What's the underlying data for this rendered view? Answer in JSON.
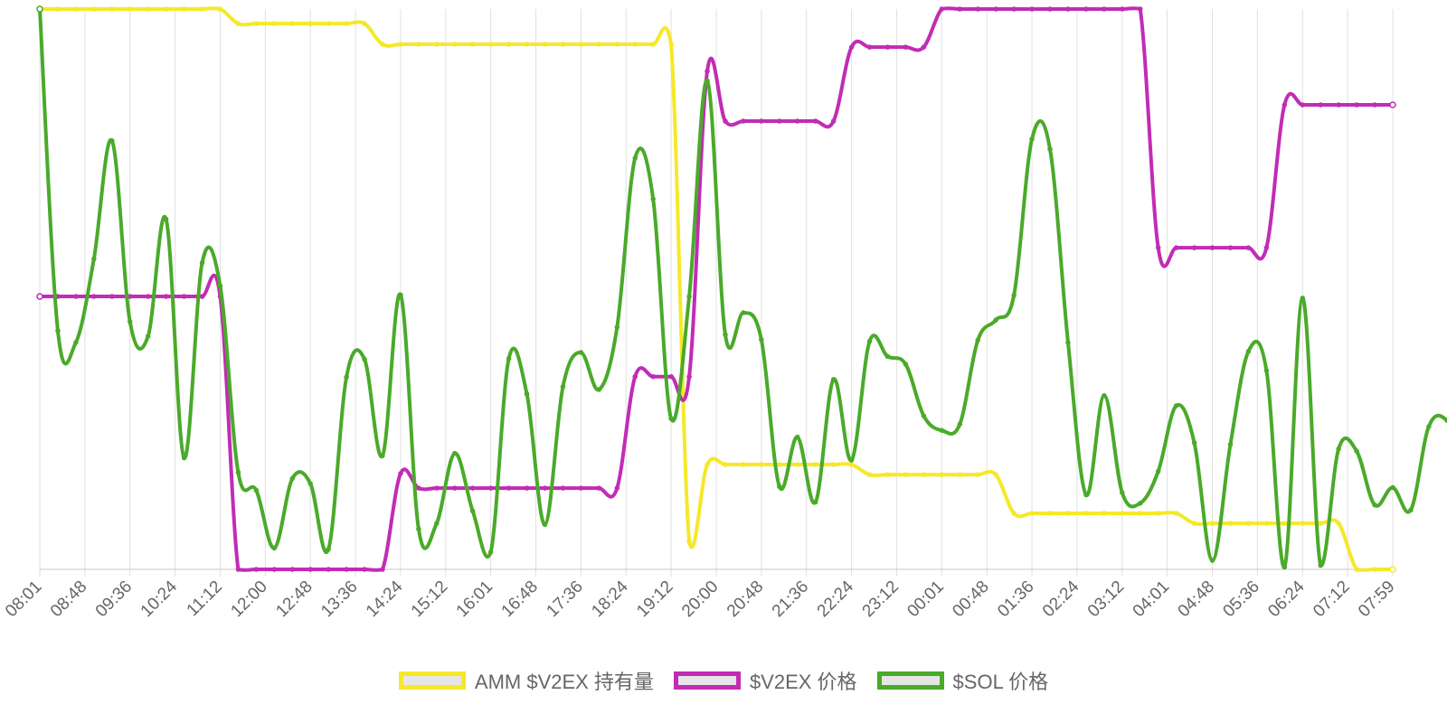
{
  "chart_data": {
    "type": "line",
    "x_labels": [
      "08:01",
      "08:48",
      "09:36",
      "10:24",
      "11:12",
      "12:00",
      "12:48",
      "13:36",
      "14:24",
      "15:12",
      "16:01",
      "16:48",
      "17:36",
      "18:24",
      "19:12",
      "20:00",
      "20:48",
      "21:36",
      "22:24",
      "23:12",
      "00:01",
      "00:48",
      "01:36",
      "02:24",
      "03:12",
      "04:01",
      "04:48",
      "05:36",
      "06:24",
      "07:12",
      "07:59"
    ],
    "points_per_interval": 2,
    "y_axis_labels_visible": false,
    "grid": "vertical",
    "legend_position": "bottom",
    "series": [
      {
        "name": "AMM $V2EX 持有量",
        "color": "#f5e829",
        "values": [
          100,
          100,
          100,
          100,
          100,
          100,
          100,
          100,
          100,
          100,
          100,
          97.4,
          97.4,
          97.4,
          97.4,
          97.4,
          97.4,
          97.4,
          97.4,
          93.7,
          93.7,
          93.7,
          93.7,
          93.7,
          93.7,
          93.7,
          93.7,
          93.7,
          93.7,
          93.7,
          93.7,
          93.7,
          93.7,
          93.7,
          93.7,
          93.7,
          5,
          18.7,
          18.7,
          18.7,
          18.7,
          18.7,
          18.7,
          18.7,
          18.7,
          18.7,
          16.9,
          16.9,
          16.9,
          16.9,
          16.9,
          16.9,
          16.9,
          16.9,
          10,
          10,
          10,
          10,
          10,
          10,
          10,
          10,
          10,
          10,
          8.2,
          8.2,
          8.2,
          8.2,
          8.2,
          8.2,
          8.2,
          8.2,
          8.2,
          0,
          0,
          0
        ]
      },
      {
        "name": "$V2EX 价格",
        "color": "#c12cb5",
        "values": [
          48.7,
          48.7,
          48.7,
          48.7,
          48.7,
          48.7,
          48.7,
          48.7,
          48.7,
          48.7,
          48.7,
          0,
          0,
          0,
          0,
          0,
          0,
          0,
          0,
          0,
          17.1,
          14.5,
          14.5,
          14.5,
          14.5,
          14.5,
          14.5,
          14.5,
          14.5,
          14.5,
          14.5,
          14.5,
          14.5,
          34.4,
          34.4,
          34.4,
          34.4,
          88.9,
          80,
          80,
          80,
          80,
          80,
          80,
          80,
          93.2,
          93.2,
          93.2,
          93.2,
          93.2,
          100,
          100,
          100,
          100,
          100,
          100,
          100,
          100,
          100,
          100,
          100,
          100,
          57.4,
          57.4,
          57.4,
          57.4,
          57.4,
          57.4,
          57.4,
          82.9,
          82.9,
          82.9,
          82.9,
          82.9,
          82.9,
          82.9
        ]
      },
      {
        "name": "$SOL 价格",
        "color": "#4aaa2a",
        "values": [
          100,
          42.6,
          40.5,
          55.4,
          76.5,
          44.2,
          41.6,
          62.5,
          19.9,
          54.7,
          50.6,
          17.3,
          14.1,
          3.8,
          16.2,
          15.3,
          3.6,
          34.3,
          37.5,
          20.3,
          49,
          7.2,
          8.2,
          20.7,
          10.4,
          3.1,
          37.6,
          31.3,
          8,
          32.6,
          38.7,
          32.1,
          43.2,
          73.4,
          66.1,
          26.9,
          48.7,
          87.2,
          41.9,
          45.8,
          41,
          14.8,
          23.6,
          12,
          33.9,
          19.5,
          40.7,
          38,
          36.6,
          27.4,
          24.8,
          25.9,
          40.9,
          44.5,
          48.9,
          76.8,
          75,
          40.5,
          13.3,
          31,
          13.7,
          11.8,
          17.5,
          29.2,
          22.6,
          1.6,
          22.3,
          38.9,
          35.5,
          0.4,
          48.4,
          0.7,
          21.5,
          21.1,
          11.5,
          14.6,
          10.6,
          25.5,
          26.6,
          20.2
        ]
      }
    ]
  },
  "legend": {
    "items": [
      {
        "label": "AMM $V2EX 持有量",
        "color": "#f5e829"
      },
      {
        "label": "$V2EX 价格",
        "color": "#c12cb5"
      },
      {
        "label": "$SOL 价格",
        "color": "#4aaa2a"
      }
    ]
  },
  "colors": {
    "grid": "#e0e0e0",
    "axis": "#c8c8c8",
    "tick_text": "#666666"
  }
}
